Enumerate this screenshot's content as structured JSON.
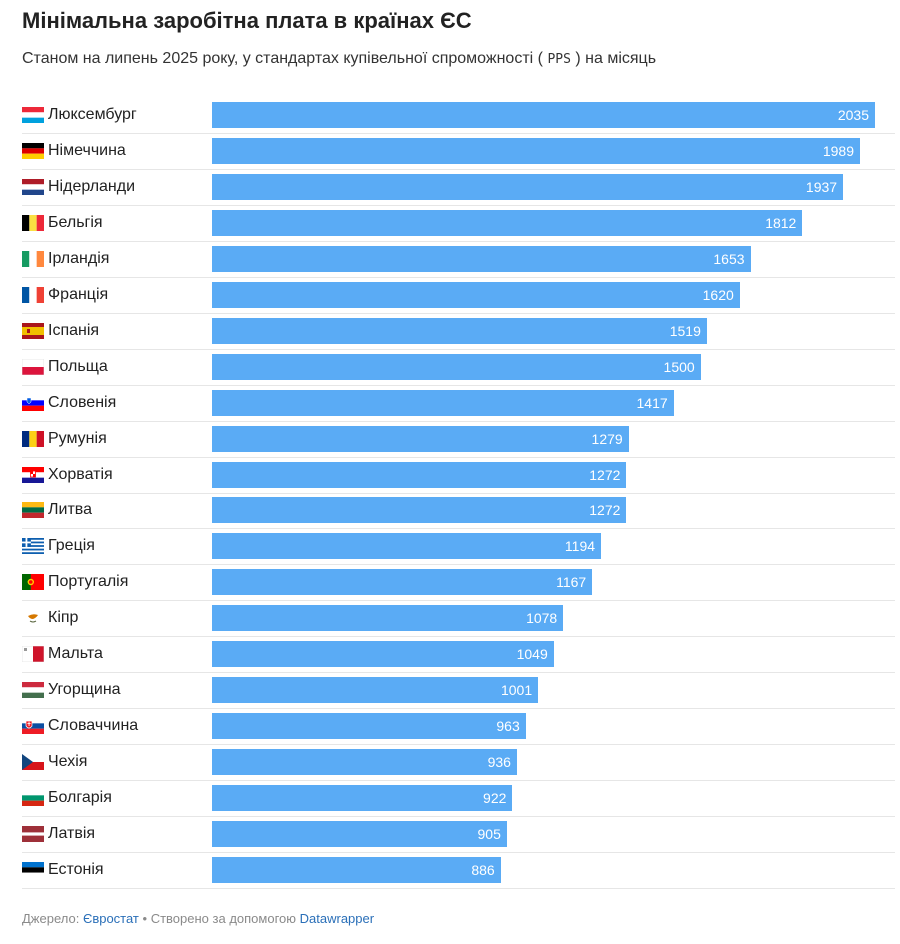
{
  "header": {
    "title": "Мінімальна заробітна плата в країнах ЄС",
    "subtitle_pre": "Станом на липень 2025 року, у стандартах купівельної спроможності (",
    "subtitle_code": "PPS",
    "subtitle_post": ") на місяць"
  },
  "chart_data": {
    "type": "bar",
    "orientation": "horizontal",
    "title": "Мінімальна заробітна плата в країнах ЄС",
    "subtitle": "Станом на липень 2025 року, у стандартах купівельної спроможності ( PPS ) на місяць",
    "xlim": [
      0,
      2035
    ],
    "grid": false,
    "value_labels": true,
    "bar_color": "#5aabf5",
    "categories": [
      "Люксембург",
      "Німеччина",
      "Нідерланди",
      "Бельгія",
      "Ірландія",
      "Франція",
      "Іспанія",
      "Польща",
      "Словенія",
      "Румунія",
      "Хорватія",
      "Литва",
      "Греція",
      "Португалія",
      "Кіпр",
      "Мальта",
      "Угорщина",
      "Словаччина",
      "Чехія",
      "Болгарія",
      "Латвія",
      "Естонія"
    ],
    "values": [
      2035,
      1989,
      1937,
      1812,
      1653,
      1620,
      1519,
      1500,
      1417,
      1279,
      1272,
      1272,
      1194,
      1167,
      1078,
      1049,
      1001,
      963,
      936,
      922,
      905,
      886
    ],
    "flags": [
      "lu",
      "de",
      "nl",
      "be",
      "ie",
      "fr",
      "es",
      "pl",
      "si",
      "ro",
      "hr",
      "lt",
      "gr",
      "pt",
      "cy",
      "mt",
      "hu",
      "sk",
      "cz",
      "bg",
      "lv",
      "ee"
    ]
  },
  "footer": {
    "source_label": "Джерело:",
    "source_link": "Євростат",
    "separator": "•",
    "made_with": "Створено за допомогою",
    "tool_link": "Datawrapper"
  }
}
